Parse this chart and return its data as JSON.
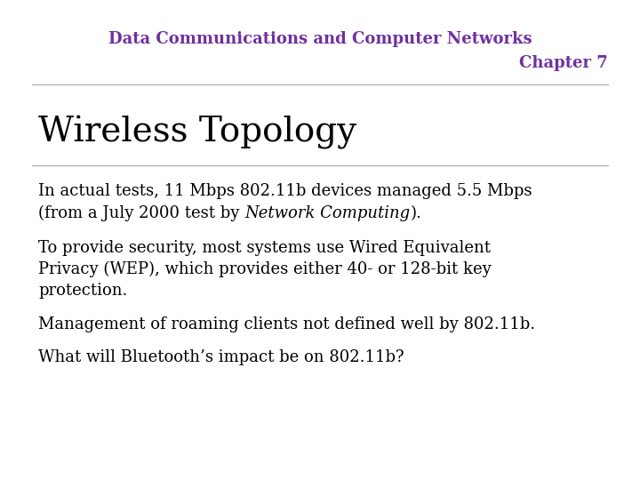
{
  "background_color": "#ffffff",
  "header_line1": "Data Communications and Computer Networks",
  "header_line2": "Chapter 7",
  "header_color": "#7030a0",
  "header_fontsize": 13,
  "title": "Wireless Topology",
  "title_fontsize": 28,
  "title_color": "#000000",
  "body_fontsize": 13,
  "body_color": "#000000",
  "p1_line1": "In actual tests, 11 Mbps 802.11b devices managed 5.5 Mbps",
  "p1_line2_before": "(from a July 2000 test by ",
  "p1_line2_italic": "Network Computing",
  "p1_line2_after": ").",
  "p2": "To provide security, most systems use Wired Equivalent\nPrivacy (WEP), which provides either 40- or 128-bit key\nprotection.",
  "p3": "Management of roaming clients not defined well by 802.11b.",
  "p4": "What will Bluetooth’s impact be on 802.11b?"
}
